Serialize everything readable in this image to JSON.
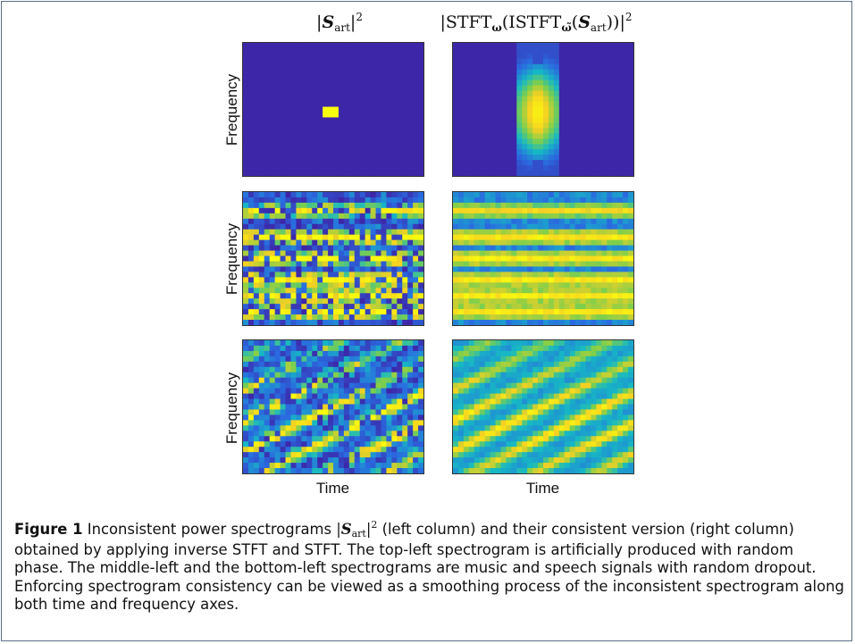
{
  "figure": {
    "columns": [
      {
        "title_parts": {
          "bar_open": "|",
          "symbol": "S",
          "subscript": "art",
          "bar_close": "|",
          "sup": "2"
        }
      },
      {
        "title_parts": {
          "prefix": "|STFT",
          "omega": "ω",
          "mid": "(ISTFT",
          "omega_tilde": "ω̃",
          "open": "(",
          "symbol": "S",
          "subscript": "art",
          "close": "))|",
          "sup": "2"
        }
      }
    ],
    "ylabel": "Frequency",
    "xlabel": "Time",
    "colors": {
      "background_low": "#3d26a8",
      "low_mid": "#2a6ae0",
      "mid": "#16b9c4",
      "high_mid": "#7ccf4d",
      "high": "#f6d022",
      "peak": "#f9fb0e",
      "frame": "#5a6f86"
    }
  },
  "caption": {
    "label": "Figure 1",
    "text_before": "Inconsistent power spectrograms",
    "math_bar_open": "|",
    "math_symbol": "S",
    "math_sub": "art",
    "math_bar_close": "|",
    "math_sup": "2",
    "text_after": "(left column) and their consistent version (right column) obtained by applying inverse STFT and STFT. The top-left spectrogram is artificially produced with random phase. The middle-left and the bottom-left spectrograms are music and speech signals with random dropout. Enforcing spectrogram consistency can be viewed as a smoothing process of the inconsistent spectrogram along both time and frequency axes."
  }
}
